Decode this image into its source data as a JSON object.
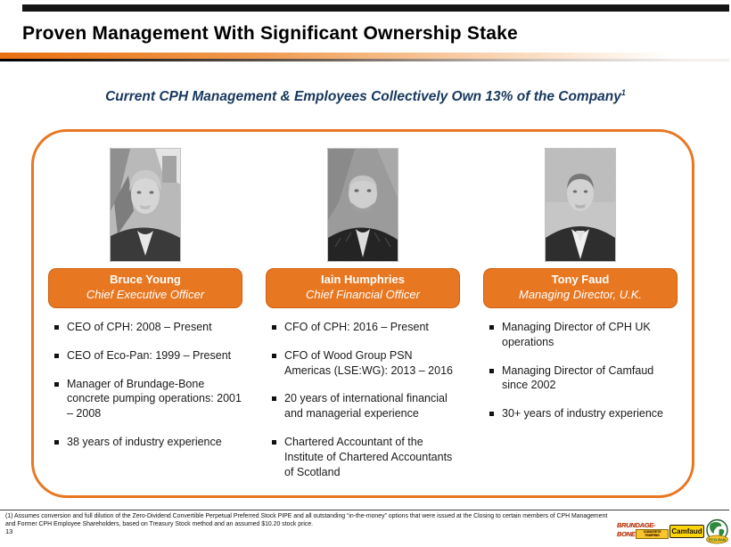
{
  "slide": {
    "title": "Proven Management With Significant Ownership Stake",
    "subtitle": "Current CPH Management & Employees Collectively Own 13% of the Company",
    "subtitle_superscript": "1",
    "page_number": "13"
  },
  "colors": {
    "accent_orange": "#E87722",
    "banner_border": "#CF5F0E",
    "subtitle_navy": "#17375D",
    "title_black": "#000000"
  },
  "profiles": [
    {
      "name": "Bruce Young",
      "role": "Chief Executive Officer",
      "photo": "grayscale-headshot-gray-haired-man-outdoor",
      "bullets": [
        "CEO of CPH: 2008 – Present",
        "CEO of Eco-Pan: 1999 – Present",
        "Manager of Brundage-Bone concrete pumping operations: 2001 – 2008",
        "38 years of industry experience"
      ]
    },
    {
      "name": "Iain Humphries",
      "role": "Chief Financial Officer",
      "photo": "grayscale-headshot-bald-man-beard-pinstripe-suit",
      "bullets": [
        "CFO of CPH: 2016 – Present",
        "CFO of Wood Group PSN Americas (LSE:WG): 2013 – 2016",
        "20 years of international financial and managerial experience",
        "Chartered Accountant of the Institute of Chartered Accountants of Scotland"
      ]
    },
    {
      "name": "Tony Faud",
      "role": "Managing Director, U.K.",
      "photo": "grayscale-headshot-man-dark-suit-white-shirt",
      "bullets": [
        "Managing Director of CPH UK operations",
        "Managing Director of Camfaud since 2002",
        "30+ years of industry experience"
      ]
    }
  ],
  "footnote": "(1) Assumes conversion and full dilution of the Zero-Dividend Convertible Perpetual Preferred Stock PIPE and all outstanding “in-the-money” options that were issued at the Closing to certain members of CPH Management and Former CPH Employee Shareholders, based on Treasury Stock method and an assumed $10.20 stock price.",
  "logos": {
    "brundage_bone": {
      "line1": "BRUNDAGE-",
      "line2": "BONE",
      "tagline": "CONCRETE PUMPING"
    },
    "camfaud": {
      "label": "Camfaud"
    },
    "eco_pan": {
      "label": "ECO-PAN"
    }
  }
}
